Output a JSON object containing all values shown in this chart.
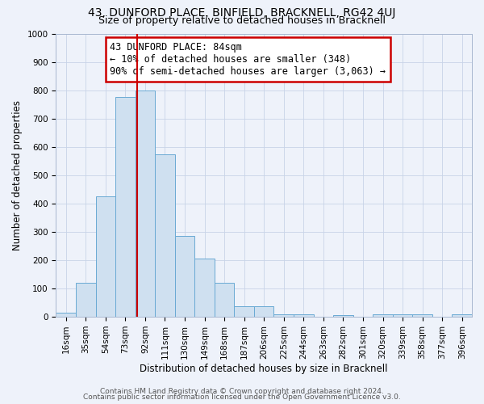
{
  "title": "43, DUNFORD PLACE, BINFIELD, BRACKNELL, RG42 4UJ",
  "subtitle": "Size of property relative to detached houses in Bracknell",
  "xlabel": "Distribution of detached houses by size in Bracknell",
  "ylabel": "Number of detached properties",
  "bar_color": "#cfe0f0",
  "bar_edge_color": "#6aaad4",
  "grid_color": "#c8d4e8",
  "background_color": "#eef2fa",
  "bin_labels": [
    "16sqm",
    "35sqm",
    "54sqm",
    "73sqm",
    "92sqm",
    "111sqm",
    "130sqm",
    "149sqm",
    "168sqm",
    "187sqm",
    "206sqm",
    "225sqm",
    "244sqm",
    "263sqm",
    "282sqm",
    "301sqm",
    "320sqm",
    "339sqm",
    "358sqm",
    "377sqm",
    "396sqm"
  ],
  "bin_centers": [
    16,
    35,
    54,
    73,
    92,
    111,
    130,
    149,
    168,
    187,
    206,
    225,
    244,
    263,
    282,
    301,
    320,
    339,
    358,
    377,
    396
  ],
  "bin_width": 19,
  "bar_heights": [
    15,
    120,
    425,
    775,
    800,
    575,
    285,
    205,
    120,
    38,
    38,
    10,
    10,
    0,
    7,
    0,
    10,
    10,
    10,
    0,
    10
  ],
  "vline_x": 84,
  "vline_color": "#cc0000",
  "annotation_text": "43 DUNFORD PLACE: 84sqm\n← 10% of detached houses are smaller (348)\n90% of semi-detached houses are larger (3,063) →",
  "annotation_box_color": "#ffffff",
  "annotation_box_edge_color": "#cc0000",
  "ylim": [
    0,
    1000
  ],
  "yticks": [
    0,
    100,
    200,
    300,
    400,
    500,
    600,
    700,
    800,
    900,
    1000
  ],
  "footer1": "Contains HM Land Registry data © Crown copyright and database right 2024.",
  "footer2": "Contains public sector information licensed under the Open Government Licence v3.0.",
  "title_fontsize": 10,
  "subtitle_fontsize": 9,
  "axis_label_fontsize": 8.5,
  "tick_fontsize": 7.5,
  "annotation_fontsize": 8.5,
  "footer_fontsize": 6.5
}
